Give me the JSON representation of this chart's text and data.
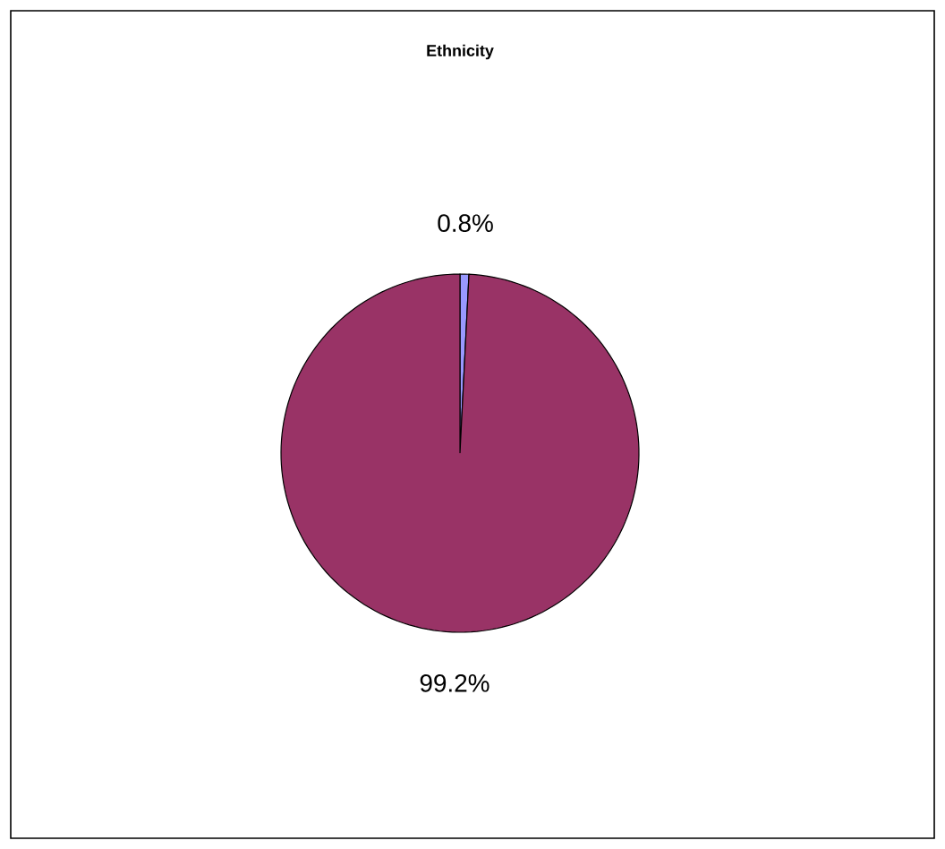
{
  "chart_data": {
    "type": "pie",
    "title": "Ethnicity",
    "categories": [
      null,
      null
    ],
    "values": [
      0.8,
      99.2
    ],
    "colors": [
      "#9999ff",
      "#993366"
    ],
    "value_labels": [
      "0.8%",
      "99.2%"
    ]
  }
}
